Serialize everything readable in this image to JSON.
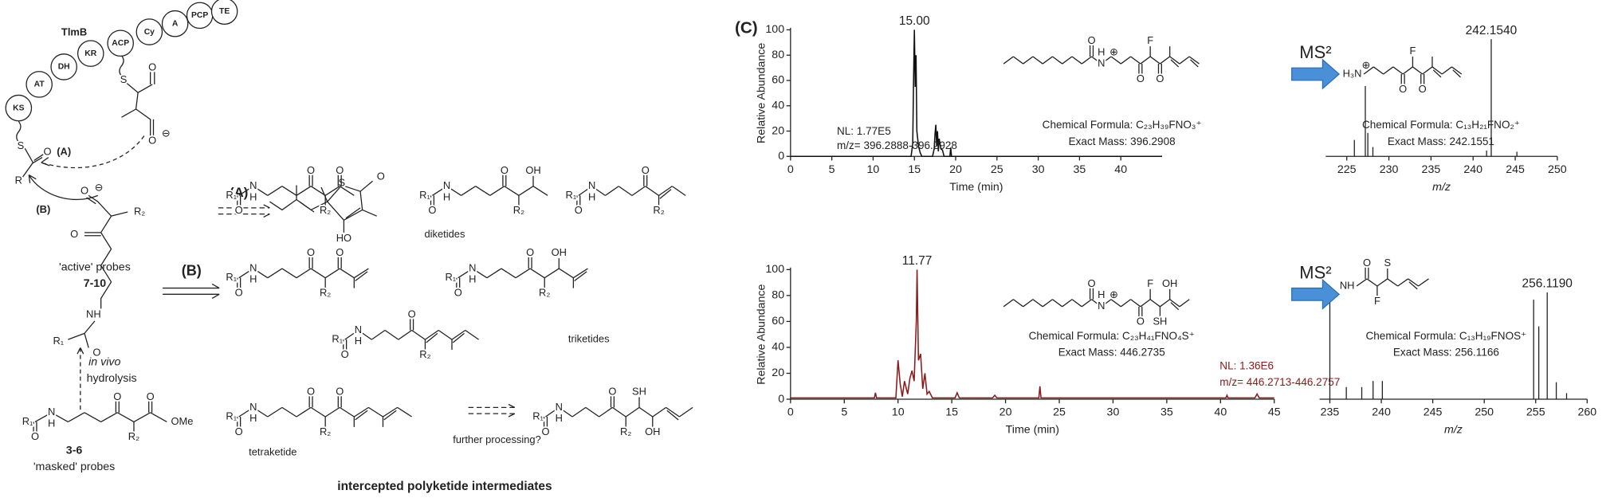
{
  "scheme": {
    "enzyme": "TlmB",
    "domains": [
      "KS",
      "AT",
      "DH",
      "KR",
      "ACP",
      "Cy",
      "A",
      "PCP",
      "TE"
    ],
    "route_a": "(A)",
    "route_b": "(B)",
    "active_probes": "'active' probes",
    "active_ids": "7-10",
    "in_vivo": "in vivo",
    "hydrolysis": "hydrolysis",
    "masked_ids": "3-6",
    "masked_probes": "'masked' probes",
    "diketides": "diketides",
    "triketides": "triketides",
    "tetraketide": "tetraketide",
    "further": "further processing?",
    "caption": "intercepted polyketide intermediates",
    "atoms": [
      "O",
      "N",
      "H",
      "R₁",
      "R₂",
      "OH",
      "SH",
      "S",
      "F",
      "OMe",
      "HO",
      "H₃N",
      "NH",
      "R",
      "⊖",
      "⊕"
    ]
  },
  "panel_label": "(C)",
  "chart_data": [
    {
      "type": "line",
      "color": "#111111",
      "x": [
        0,
        14.6,
        14.8,
        14.9,
        15.0,
        15.1,
        15.2,
        15.3,
        15.5,
        15.7,
        15.9,
        17.2,
        17.4,
        17.5,
        17.6,
        17.7,
        17.8,
        17.9,
        18.0,
        18.2,
        18.4,
        18.6,
        19.3,
        19.4,
        19.5,
        45
      ],
      "values": [
        0,
        0,
        10,
        60,
        100,
        55,
        80,
        20,
        8,
        3,
        0,
        0,
        6,
        18,
        25,
        8,
        20,
        4,
        14,
        6,
        5,
        0,
        0,
        7,
        0,
        0
      ],
      "xlim": [
        0,
        45
      ],
      "ylim": [
        0,
        100
      ],
      "xticks": [
        0,
        5,
        10,
        15,
        20,
        25,
        30,
        35,
        40
      ],
      "yticks": [
        0,
        20,
        40,
        60,
        80,
        100
      ],
      "xlabel": "Time (min)",
      "ylabel": "Relative Abundance",
      "annotations": [
        {
          "value": 15,
          "label": "15.00"
        }
      ],
      "texts": [
        "NL: 1.77E5",
        "m/z= 396.2888-396.2928",
        "Chemical Formula: C₂₃H₃₉FNO₃⁺",
        "Exact Mass: 396.2908"
      ]
    },
    {
      "type": "stick",
      "color": "#111111",
      "title": "MS²",
      "x": [
        225.9,
        227.2,
        227.5,
        228.1,
        241.6,
        242.154,
        245.2
      ],
      "values": [
        14,
        60,
        20,
        8,
        5,
        100,
        4
      ],
      "xlim": [
        222.5,
        250
      ],
      "ylim": [
        0,
        100
      ],
      "xticks": [
        225,
        230,
        235,
        240,
        245,
        250
      ],
      "xlabel": "m/z",
      "annotations": [
        {
          "value": 242.154,
          "label": "242.1540"
        }
      ],
      "texts": [
        "Chemical Formula: C₁₃H₂₁FNO₂⁺",
        "Exact Mass: 242.1551"
      ]
    },
    {
      "type": "line",
      "color": "#8b1a1a",
      "x": [
        0,
        7.8,
        7.9,
        8.0,
        9.8,
        10.0,
        10.2,
        10.4,
        10.6,
        10.9,
        11.1,
        11.3,
        11.5,
        11.7,
        11.77,
        11.9,
        12.1,
        12.3,
        12.5,
        12.7,
        12.9,
        13.2,
        15.3,
        15.5,
        15.7,
        18.8,
        19.0,
        19.2,
        23.1,
        23.2,
        23.3,
        40.5,
        40.6,
        40.7,
        43.2,
        43.4,
        43.6,
        45
      ],
      "values": [
        1,
        1,
        5,
        1,
        1,
        30,
        12,
        2,
        14,
        4,
        16,
        22,
        14,
        60,
        100,
        30,
        35,
        8,
        20,
        4,
        6,
        1,
        1,
        5,
        1,
        1,
        3,
        1,
        1,
        10,
        1,
        1,
        3,
        1,
        1,
        4,
        1,
        1
      ],
      "xlim": [
        0,
        45
      ],
      "ylim": [
        0,
        100
      ],
      "xticks": [
        0,
        5,
        10,
        15,
        20,
        25,
        30,
        35,
        40,
        45
      ],
      "yticks": [
        0,
        20,
        40,
        60,
        80,
        100
      ],
      "xlabel": "Time (min)",
      "ylabel": "Relative Abundance",
      "annotations": [
        {
          "value": 11.77,
          "label": "11.77"
        }
      ],
      "texts": [
        "Chemical Formula: C₂₃H₄₁FNO₄S⁺",
        "Exact Mass: 446.2735",
        "NL: 1.36E6",
        "m/z= 446.2713-446.2757"
      ]
    },
    {
      "type": "stick",
      "color": "#111111",
      "title": "MS²",
      "x": [
        235.0,
        236.6,
        238.1,
        239.2,
        240.1,
        254.8,
        255.3,
        256.119,
        257.0,
        258.0
      ],
      "values": [
        80,
        10,
        10,
        15,
        15,
        82,
        60,
        88,
        14,
        5
      ],
      "xlim": [
        234,
        260
      ],
      "ylim": [
        0,
        100
      ],
      "xticks": [
        235,
        240,
        245,
        250,
        255,
        260
      ],
      "xlabel": "m/z",
      "annotations": [
        {
          "value": 256.119,
          "label": "256.1190"
        }
      ],
      "texts": [
        "Chemical Formula: C₁₃H₁₉FNOS⁺",
        "Exact Mass: 256.1166"
      ]
    }
  ]
}
